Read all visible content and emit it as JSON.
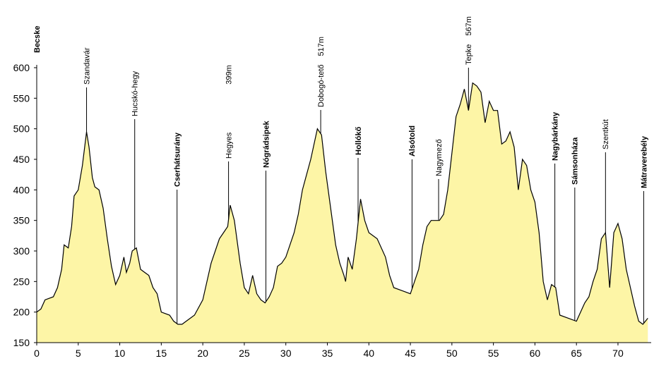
{
  "chart_data": {
    "type": "area",
    "x": [
      0,
      0.5,
      1,
      2,
      2.5,
      3,
      3.3,
      3.8,
      4.2,
      4.5,
      5,
      5.5,
      6,
      6.3,
      6.7,
      7,
      7.5,
      8,
      8.5,
      9,
      9.5,
      10,
      10.5,
      10.8,
      11.2,
      11.5,
      12,
      12.5,
      13,
      13.5,
      14,
      14.5,
      15,
      16,
      16.5,
      17,
      17.5,
      18,
      19,
      20,
      21,
      22,
      22.5,
      23,
      23.3,
      23.8,
      24.5,
      25,
      25.5,
      26,
      26.5,
      27,
      27.5,
      28,
      28.5,
      29,
      29.5,
      30,
      31,
      31.5,
      32,
      33,
      33.8,
      34.3,
      34.8,
      35.5,
      36,
      36.5,
      37,
      37.2,
      37.5,
      38,
      38.5,
      39,
      39.5,
      40,
      41,
      42,
      42.5,
      43,
      44,
      45,
      45.5,
      46,
      46.5,
      47,
      47.5,
      48.5,
      49,
      49.5,
      50,
      50.5,
      51,
      51.5,
      52,
      52.5,
      53,
      53.5,
      54,
      54.5,
      55,
      55.5,
      56,
      56.5,
      57,
      57.5,
      58,
      58.5,
      59,
      59.5,
      60,
      60.5,
      61,
      61.5,
      62,
      62.5,
      63,
      64,
      65,
      65.5,
      66,
      66.5,
      67,
      67.5,
      68,
      68.5,
      69,
      69.5,
      70,
      70.5,
      71,
      72,
      72.5,
      73,
      73.6
    ],
    "values": [
      200,
      205,
      220,
      225,
      240,
      270,
      310,
      305,
      340,
      390,
      400,
      440,
      495,
      470,
      420,
      405,
      400,
      370,
      320,
      275,
      245,
      260,
      290,
      265,
      280,
      300,
      305,
      270,
      265,
      260,
      240,
      230,
      200,
      195,
      185,
      180,
      180,
      185,
      195,
      220,
      280,
      320,
      330,
      340,
      375,
      350,
      280,
      240,
      230,
      260,
      230,
      220,
      215,
      225,
      240,
      275,
      280,
      290,
      330,
      360,
      400,
      450,
      500,
      490,
      430,
      360,
      310,
      280,
      260,
      250,
      290,
      270,
      320,
      385,
      350,
      330,
      320,
      290,
      260,
      240,
      235,
      230,
      250,
      270,
      310,
      340,
      350,
      350,
      360,
      400,
      460,
      520,
      540,
      565,
      530,
      575,
      570,
      560,
      510,
      545,
      530,
      530,
      475,
      480,
      495,
      470,
      400,
      450,
      440,
      400,
      380,
      330,
      250,
      220,
      245,
      240,
      195,
      190,
      185,
      200,
      215,
      225,
      250,
      270,
      320,
      330,
      240,
      330,
      345,
      320,
      270,
      210,
      185,
      180,
      190
    ],
    "color": "#fdf5a6",
    "xlim": [
      0,
      74
    ],
    "ylim": [
      150,
      600
    ],
    "xticks": [
      0,
      5,
      10,
      15,
      20,
      25,
      30,
      35,
      40,
      45,
      50,
      55,
      60,
      65,
      70
    ],
    "yticks": [
      150,
      200,
      250,
      300,
      350,
      400,
      450,
      500,
      550,
      600
    ],
    "annotations": [
      {
        "label": "Becske",
        "x": 0,
        "bold": true
      },
      {
        "label": "Szandavár",
        "x": 6,
        "bold": false
      },
      {
        "label": "Hucskó-hegy",
        "x": 11.8,
        "bold": false
      },
      {
        "label": "Cserhátsurány",
        "x": 16.9,
        "bold": true
      },
      {
        "label": "Hegyes",
        "note": "399m",
        "x": 23.1,
        "bold": false
      },
      {
        "label": "Nógrádsipek",
        "x": 27.6,
        "bold": true
      },
      {
        "label": "Dobogó-tető",
        "note": "517m",
        "x": 34.2,
        "bold": false
      },
      {
        "label": "Hollókő",
        "x": 38.7,
        "bold": true
      },
      {
        "label": "Alsótold",
        "x": 45.2,
        "bold": true
      },
      {
        "label": "Nagymező",
        "x": 48.4,
        "bold": false
      },
      {
        "label": "Tepke",
        "note": "567m",
        "x": 52,
        "bold": false
      },
      {
        "label": "Nagybárkány",
        "x": 62.4,
        "bold": true
      },
      {
        "label": "Sámsonháza",
        "x": 64.8,
        "bold": true
      },
      {
        "label": "Szentkút",
        "x": 68.5,
        "bold": false
      },
      {
        "label": "Mátraverebély",
        "x": 73.1,
        "bold": true
      }
    ]
  }
}
